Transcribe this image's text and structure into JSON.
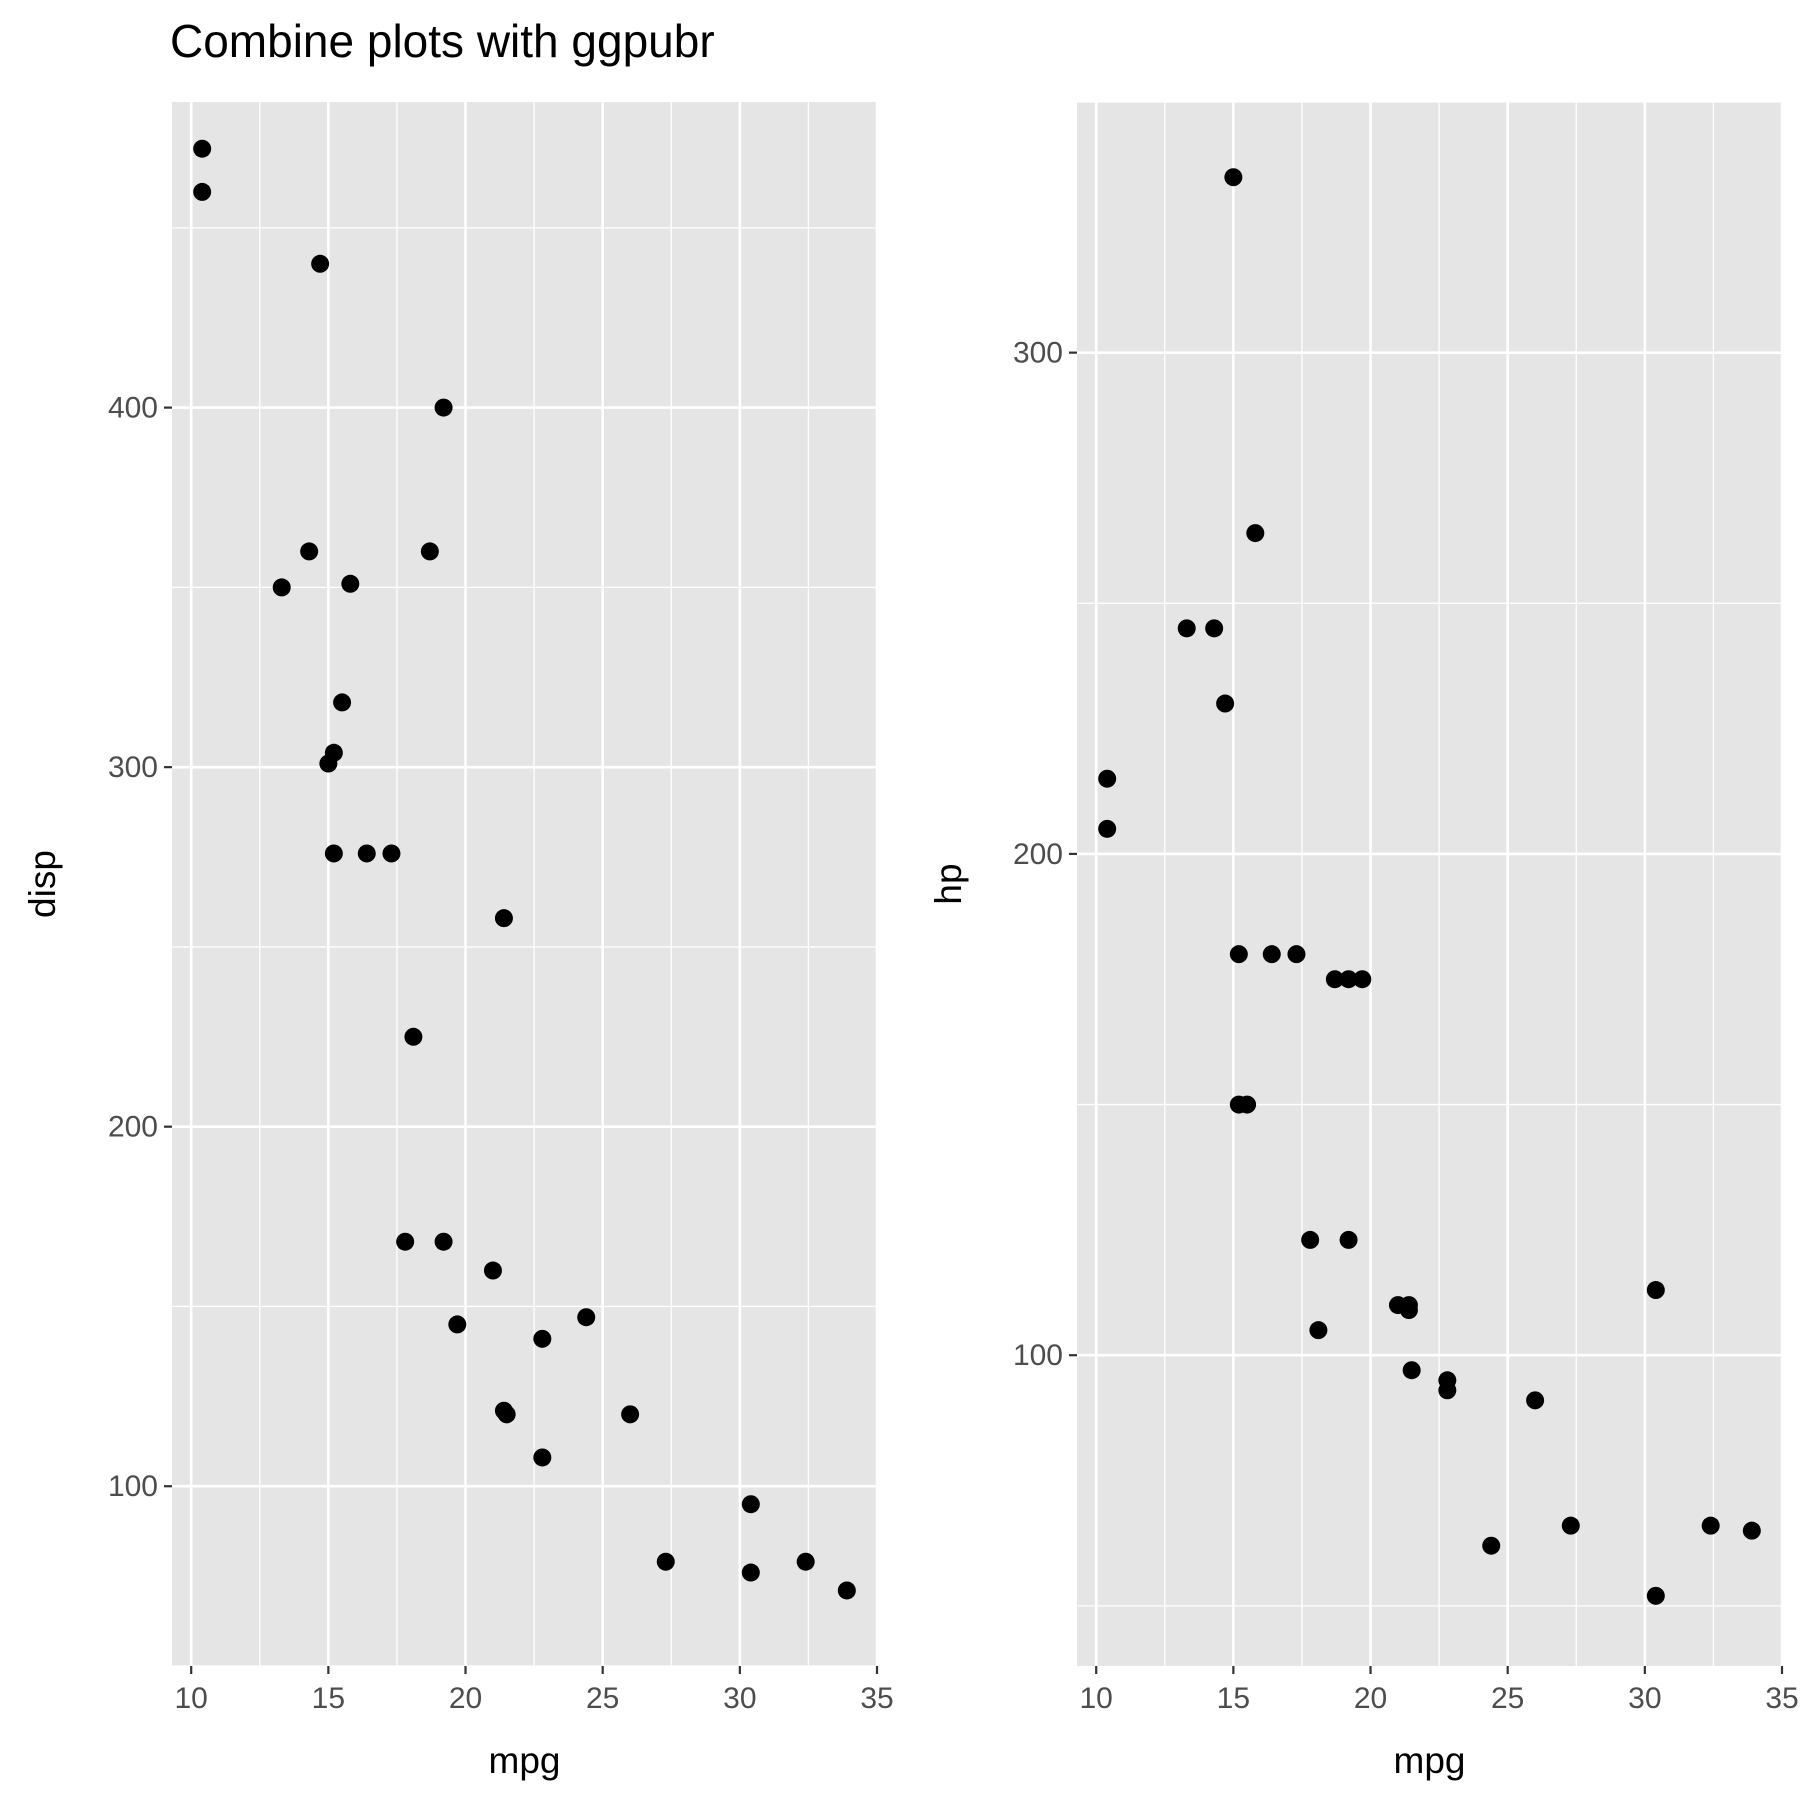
{
  "title": "Combine plots with ggpubr",
  "colors": {
    "panel": "#e5e5e5",
    "grid": "#ffffff",
    "point": "#000000",
    "tick_label": "#4d4d4d"
  },
  "chart_data": [
    {
      "type": "scatter",
      "xlabel": "mpg",
      "ylabel": "disp",
      "xlim": [
        9.3,
        35.0
      ],
      "ylim": [
        50,
        485
      ],
      "xticks": [
        10,
        15,
        20,
        25,
        30,
        35
      ],
      "yticks": [
        100,
        200,
        300,
        400
      ],
      "grid": true,
      "points": [
        {
          "x": 10.4,
          "y": 472
        },
        {
          "x": 10.4,
          "y": 460
        },
        {
          "x": 14.7,
          "y": 440
        },
        {
          "x": 19.2,
          "y": 400
        },
        {
          "x": 14.3,
          "y": 360
        },
        {
          "x": 18.7,
          "y": 360
        },
        {
          "x": 13.3,
          "y": 350
        },
        {
          "x": 15.8,
          "y": 351
        },
        {
          "x": 15.5,
          "y": 318
        },
        {
          "x": 15.2,
          "y": 304
        },
        {
          "x": 15.0,
          "y": 301
        },
        {
          "x": 15.2,
          "y": 276
        },
        {
          "x": 16.4,
          "y": 276
        },
        {
          "x": 17.3,
          "y": 276
        },
        {
          "x": 21.4,
          "y": 258
        },
        {
          "x": 18.1,
          "y": 225
        },
        {
          "x": 17.8,
          "y": 168
        },
        {
          "x": 19.2,
          "y": 168
        },
        {
          "x": 21.0,
          "y": 160
        },
        {
          "x": 19.7,
          "y": 145
        },
        {
          "x": 24.4,
          "y": 147
        },
        {
          "x": 22.8,
          "y": 141
        },
        {
          "x": 21.4,
          "y": 121
        },
        {
          "x": 21.5,
          "y": 120
        },
        {
          "x": 26.0,
          "y": 120
        },
        {
          "x": 22.8,
          "y": 108
        },
        {
          "x": 30.4,
          "y": 95
        },
        {
          "x": 27.3,
          "y": 79
        },
        {
          "x": 30.4,
          "y": 76
        },
        {
          "x": 32.4,
          "y": 79
        },
        {
          "x": 33.9,
          "y": 71
        }
      ]
    },
    {
      "type": "scatter",
      "xlabel": "mpg",
      "ylabel": "hp",
      "xlim": [
        9.3,
        35.0
      ],
      "ylim": [
        38,
        350
      ],
      "xticks": [
        10,
        15,
        20,
        25,
        30,
        35
      ],
      "yticks": [
        100,
        200,
        300
      ],
      "grid": true,
      "points": [
        {
          "x": 15.0,
          "y": 335
        },
        {
          "x": 15.8,
          "y": 264
        },
        {
          "x": 13.3,
          "y": 245
        },
        {
          "x": 14.3,
          "y": 245
        },
        {
          "x": 14.7,
          "y": 230
        },
        {
          "x": 10.4,
          "y": 215
        },
        {
          "x": 10.4,
          "y": 205
        },
        {
          "x": 15.2,
          "y": 180
        },
        {
          "x": 16.4,
          "y": 180
        },
        {
          "x": 17.3,
          "y": 180
        },
        {
          "x": 18.7,
          "y": 175
        },
        {
          "x": 19.2,
          "y": 175
        },
        {
          "x": 19.7,
          "y": 175
        },
        {
          "x": 15.2,
          "y": 150
        },
        {
          "x": 15.5,
          "y": 150
        },
        {
          "x": 17.8,
          "y": 123
        },
        {
          "x": 19.2,
          "y": 123
        },
        {
          "x": 30.4,
          "y": 113
        },
        {
          "x": 21.0,
          "y": 110
        },
        {
          "x": 21.4,
          "y": 110
        },
        {
          "x": 21.4,
          "y": 109
        },
        {
          "x": 18.1,
          "y": 105
        },
        {
          "x": 21.5,
          "y": 97
        },
        {
          "x": 22.8,
          "y": 95
        },
        {
          "x": 22.8,
          "y": 93
        },
        {
          "x": 26.0,
          "y": 91
        },
        {
          "x": 27.3,
          "y": 66
        },
        {
          "x": 32.4,
          "y": 66
        },
        {
          "x": 33.9,
          "y": 65
        },
        {
          "x": 24.4,
          "y": 62
        },
        {
          "x": 30.4,
          "y": 52
        }
      ]
    }
  ]
}
